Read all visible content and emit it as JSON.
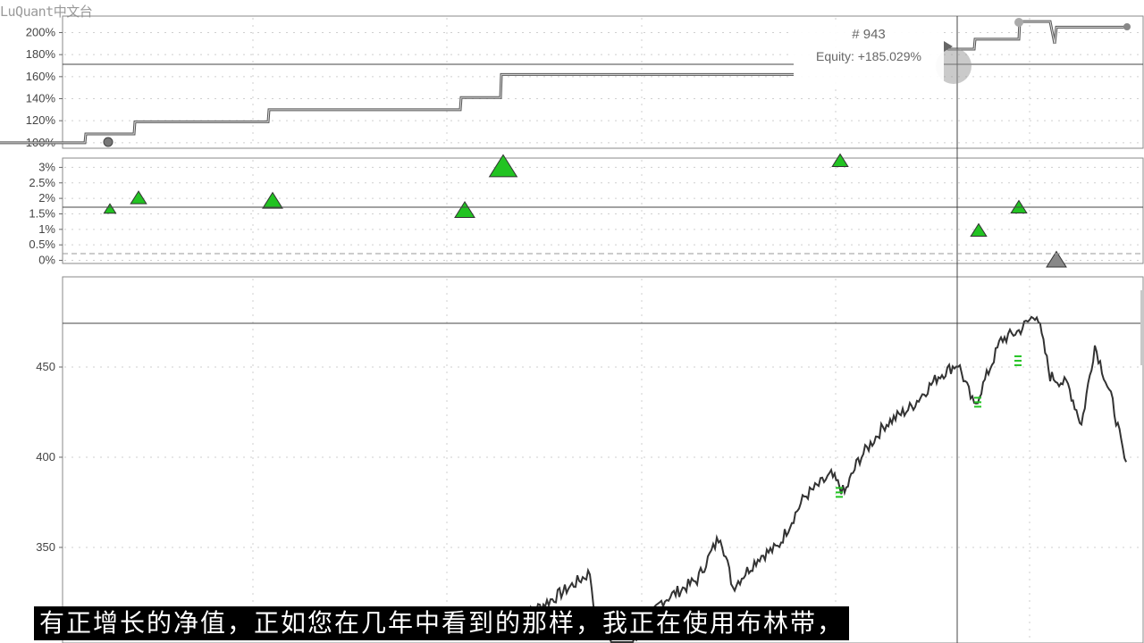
{
  "watermark": "LuQuant中文台",
  "tooltip": {
    "index": "# 943",
    "equity": "Equity: +185.029%"
  },
  "subtitle": "有正增长的净值，正如您在几年中看到的那样，我正在使用布林带，",
  "colors": {
    "trade_win": "#22c322",
    "trade_flat": "#888888",
    "equity_line": "#555555",
    "price_line": "#333333"
  },
  "chart_data": [
    {
      "type": "line",
      "panel": "equity",
      "y_ticks": [
        "100%",
        "120%",
        "140%",
        "160%",
        "180%",
        "200%"
      ],
      "ylim": [
        95,
        215
      ],
      "x": [
        0,
        95,
        96,
        150,
        151,
        300,
        301,
        515,
        516,
        560,
        561,
        888,
        1060,
        1090,
        1091,
        1140,
        1141,
        1175,
        1180,
        1182,
        1260
      ],
      "values": [
        100,
        100,
        108,
        108,
        119,
        119,
        130,
        130,
        141,
        141,
        162,
        162,
        185,
        185,
        194,
        194,
        210,
        210,
        190,
        205,
        205
      ],
      "grid": true
    },
    {
      "type": "scatter",
      "panel": "trade-profit",
      "y_ticks": [
        "0%",
        "0.5%",
        "1%",
        "1.5%",
        "2%",
        "2.5%",
        "3%"
      ],
      "ylim": [
        -0.1,
        3.3
      ],
      "markers": [
        {
          "x": 123,
          "value": 1.65,
          "size": "s"
        },
        {
          "x": 155,
          "value": 2.0,
          "size": "m"
        },
        {
          "x": 305,
          "value": 1.9,
          "size": "l"
        },
        {
          "x": 520,
          "value": 1.6,
          "size": "l"
        },
        {
          "x": 563,
          "value": 3.0,
          "size": "xl"
        },
        {
          "x": 940,
          "value": 3.2,
          "size": "m"
        },
        {
          "x": 1095,
          "value": 0.95,
          "size": "m"
        },
        {
          "x": 1140,
          "value": 1.7,
          "size": "m"
        },
        {
          "x": 1182,
          "value": 0.0,
          "size": "l",
          "flat": true
        }
      ],
      "grid": true
    },
    {
      "type": "line",
      "panel": "price",
      "y_ticks": [
        "350",
        "400",
        "450"
      ],
      "ylim": [
        297,
        500
      ],
      "x": [
        580,
        620,
        660,
        668,
        700,
        740,
        780,
        806,
        820,
        850,
        870,
        900,
        930,
        945,
        960,
        990,
        1020,
        1050,
        1072,
        1090,
        1100,
        1120,
        1140,
        1160,
        1175,
        1195,
        1210,
        1225,
        1245,
        1262
      ],
      "values": [
        310,
        322,
        336,
        305,
        290,
        320,
        332,
        357,
        328,
        345,
        350,
        378,
        390,
        380,
        398,
        418,
        428,
        445,
        452,
        428,
        440,
        465,
        470,
        480,
        445,
        440,
        418,
        462,
        430,
        390
      ],
      "grid": true
    }
  ]
}
